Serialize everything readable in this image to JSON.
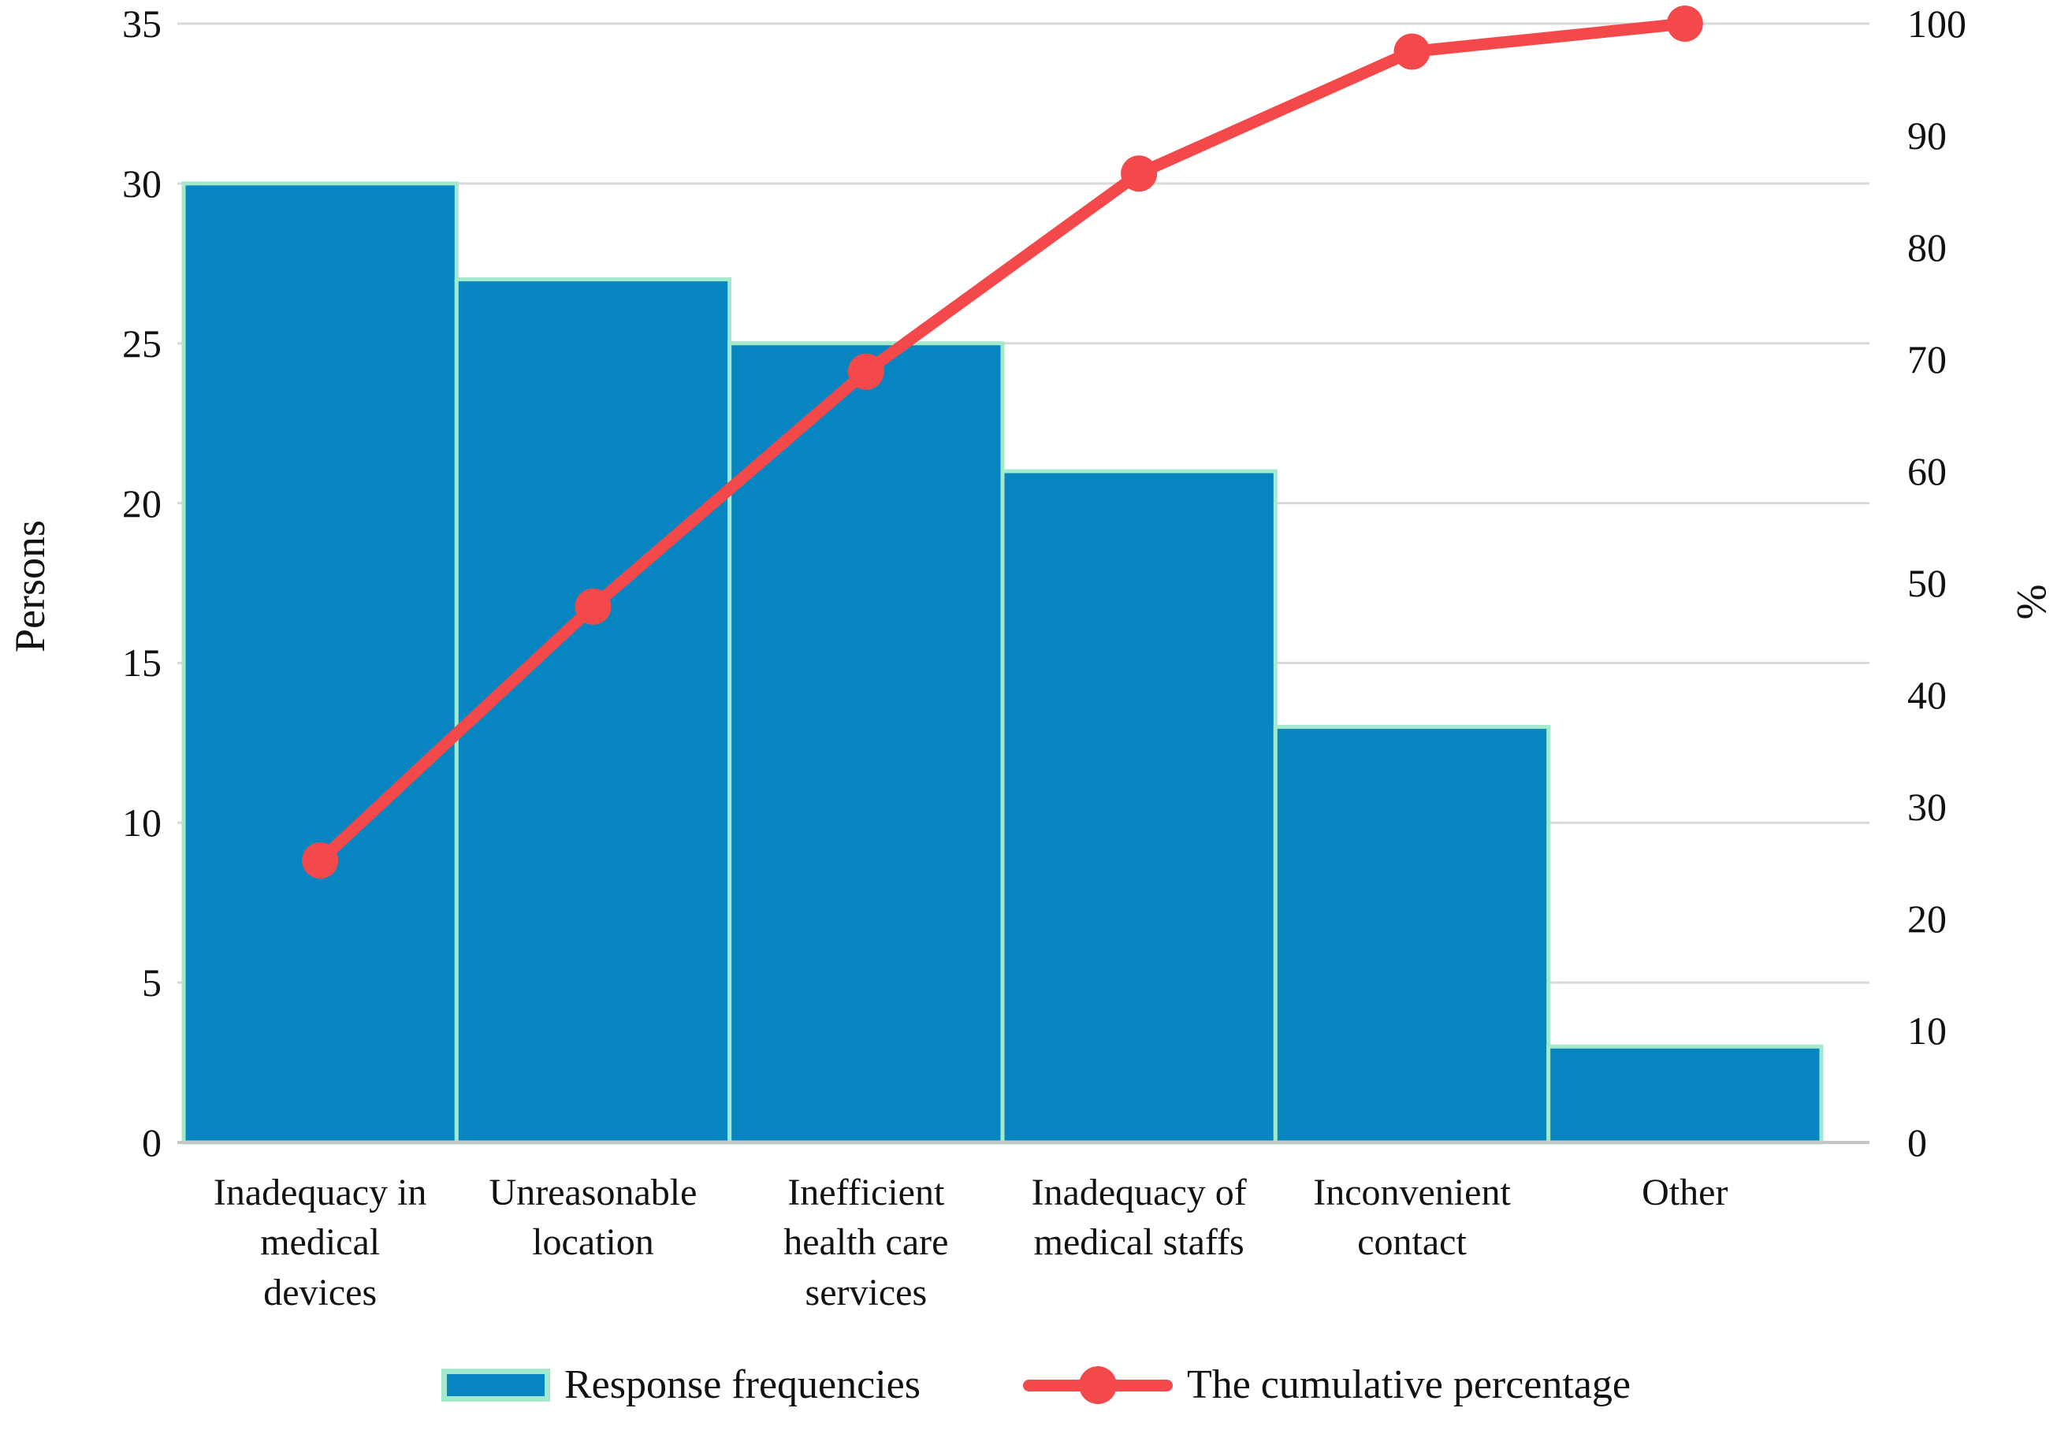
{
  "chart_data": {
    "type": "bar",
    "subtype": "pareto-combo-bar-line",
    "categories": [
      "Inadequacy in medical devices",
      "Unreasonable location",
      "Inefficient health care services",
      "Inadequacy of medical staffs",
      "Inconvenient contact",
      "Other"
    ],
    "category_display_lines": [
      [
        "Inadequacy in",
        "medical",
        "devices"
      ],
      [
        "Unreasonable",
        "location"
      ],
      [
        "Inefficient",
        "health care",
        "services"
      ],
      [
        "Inadequacy of",
        "medical staffs"
      ],
      [
        "Inconvenient",
        "contact"
      ],
      [
        "Other"
      ]
    ],
    "series": [
      {
        "name": "Response frequencies",
        "type": "bar",
        "axis": "left",
        "values": [
          30,
          27,
          25,
          21,
          13,
          3
        ]
      },
      {
        "name": "The cumulative percentage",
        "type": "line",
        "axis": "right",
        "values": [
          25.2,
          47.9,
          68.9,
          86.6,
          97.5,
          100
        ]
      }
    ],
    "left_axis": {
      "label": "Persons",
      "min": 0,
      "max": 35,
      "tick_step": 5,
      "tick_labels": [
        "0",
        "5",
        "10",
        "15",
        "20",
        "25",
        "30",
        "35"
      ]
    },
    "right_axis": {
      "label": "%",
      "min": 0,
      "max": 100,
      "tick_step": 10,
      "tick_labels": [
        "0",
        "10",
        "20",
        "30",
        "40",
        "50",
        "60",
        "70",
        "80",
        "90",
        "100"
      ]
    },
    "grid": {
      "horizontal": true,
      "vertical": false,
      "at_left_axis_ticks": true
    },
    "legend_position": "bottom",
    "colors": {
      "bar_fill": "#0785c1",
      "bar_edge": "#a3e9cb",
      "line": "#f4494a",
      "gridline": "#d9d9d9",
      "axis_line": "#c6c6c6",
      "text": "#111111"
    }
  },
  "legend": {
    "bar_label": "Response frequencies",
    "line_label": "The cumulative percentage"
  },
  "axes_titles": {
    "left": "Persons",
    "right": "%"
  }
}
